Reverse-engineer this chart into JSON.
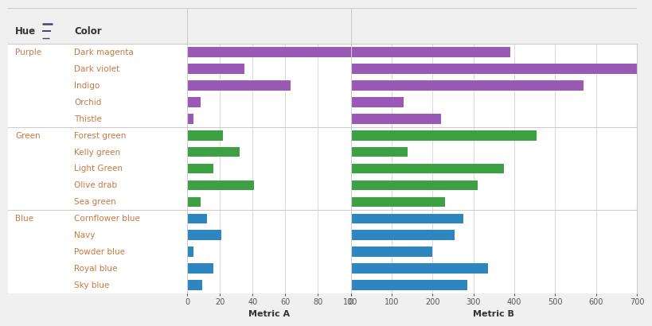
{
  "hue_groups": [
    "Purple",
    "Green",
    "Blue"
  ],
  "colors_by_group": {
    "Purple": [
      "Dark magenta",
      "Dark violet",
      "Indigo",
      "Orchid",
      "Thistle"
    ],
    "Green": [
      "Forest green",
      "Kelly green",
      "Light Green",
      "Olive drab",
      "Sea green"
    ],
    "Blue": [
      "Cornflower blue",
      "Navy",
      "Powder blue",
      "Royal blue",
      "Sky blue"
    ]
  },
  "metric_a": {
    "Dark magenta": 100,
    "Dark violet": 35,
    "Indigo": 63,
    "Orchid": 8,
    "Thistle": 4,
    "Forest green": 22,
    "Kelly green": 32,
    "Light Green": 16,
    "Olive drab": 41,
    "Sea green": 8,
    "Cornflower blue": 12,
    "Navy": 21,
    "Powder blue": 4,
    "Royal blue": 16,
    "Sky blue": 9
  },
  "metric_b": {
    "Dark magenta": 390,
    "Dark violet": 700,
    "Indigo": 570,
    "Orchid": 130,
    "Thistle": 220,
    "Forest green": 455,
    "Kelly green": 140,
    "Light Green": 375,
    "Olive drab": 310,
    "Sea green": 230,
    "Cornflower blue": 275,
    "Navy": 255,
    "Powder blue": 200,
    "Royal blue": 335,
    "Sky blue": 285
  },
  "bar_colors": {
    "Purple": "#9b59b6",
    "Green": "#3da143",
    "Blue": "#2e86c1"
  },
  "background_color": "#f0f0f0",
  "row_bg_color": "#f7f7f7",
  "divider_color": "#cccccc",
  "header_bg": "#f0f0f0",
  "metric_a_xlim": [
    0,
    100
  ],
  "metric_b_xlim": [
    0,
    700
  ],
  "metric_a_xticks": [
    0,
    20,
    40,
    60,
    80,
    100
  ],
  "metric_b_xticks": [
    0,
    100,
    200,
    300,
    400,
    500,
    600,
    700
  ],
  "xlabel_a": "Metric A",
  "xlabel_b": "Metric B",
  "header_hue": "Hue",
  "header_color_col": "Color",
  "bar_height": 0.6,
  "label_text_color": "#c87941",
  "header_text_color": "#333333",
  "tick_color": "#555555",
  "white": "#ffffff"
}
